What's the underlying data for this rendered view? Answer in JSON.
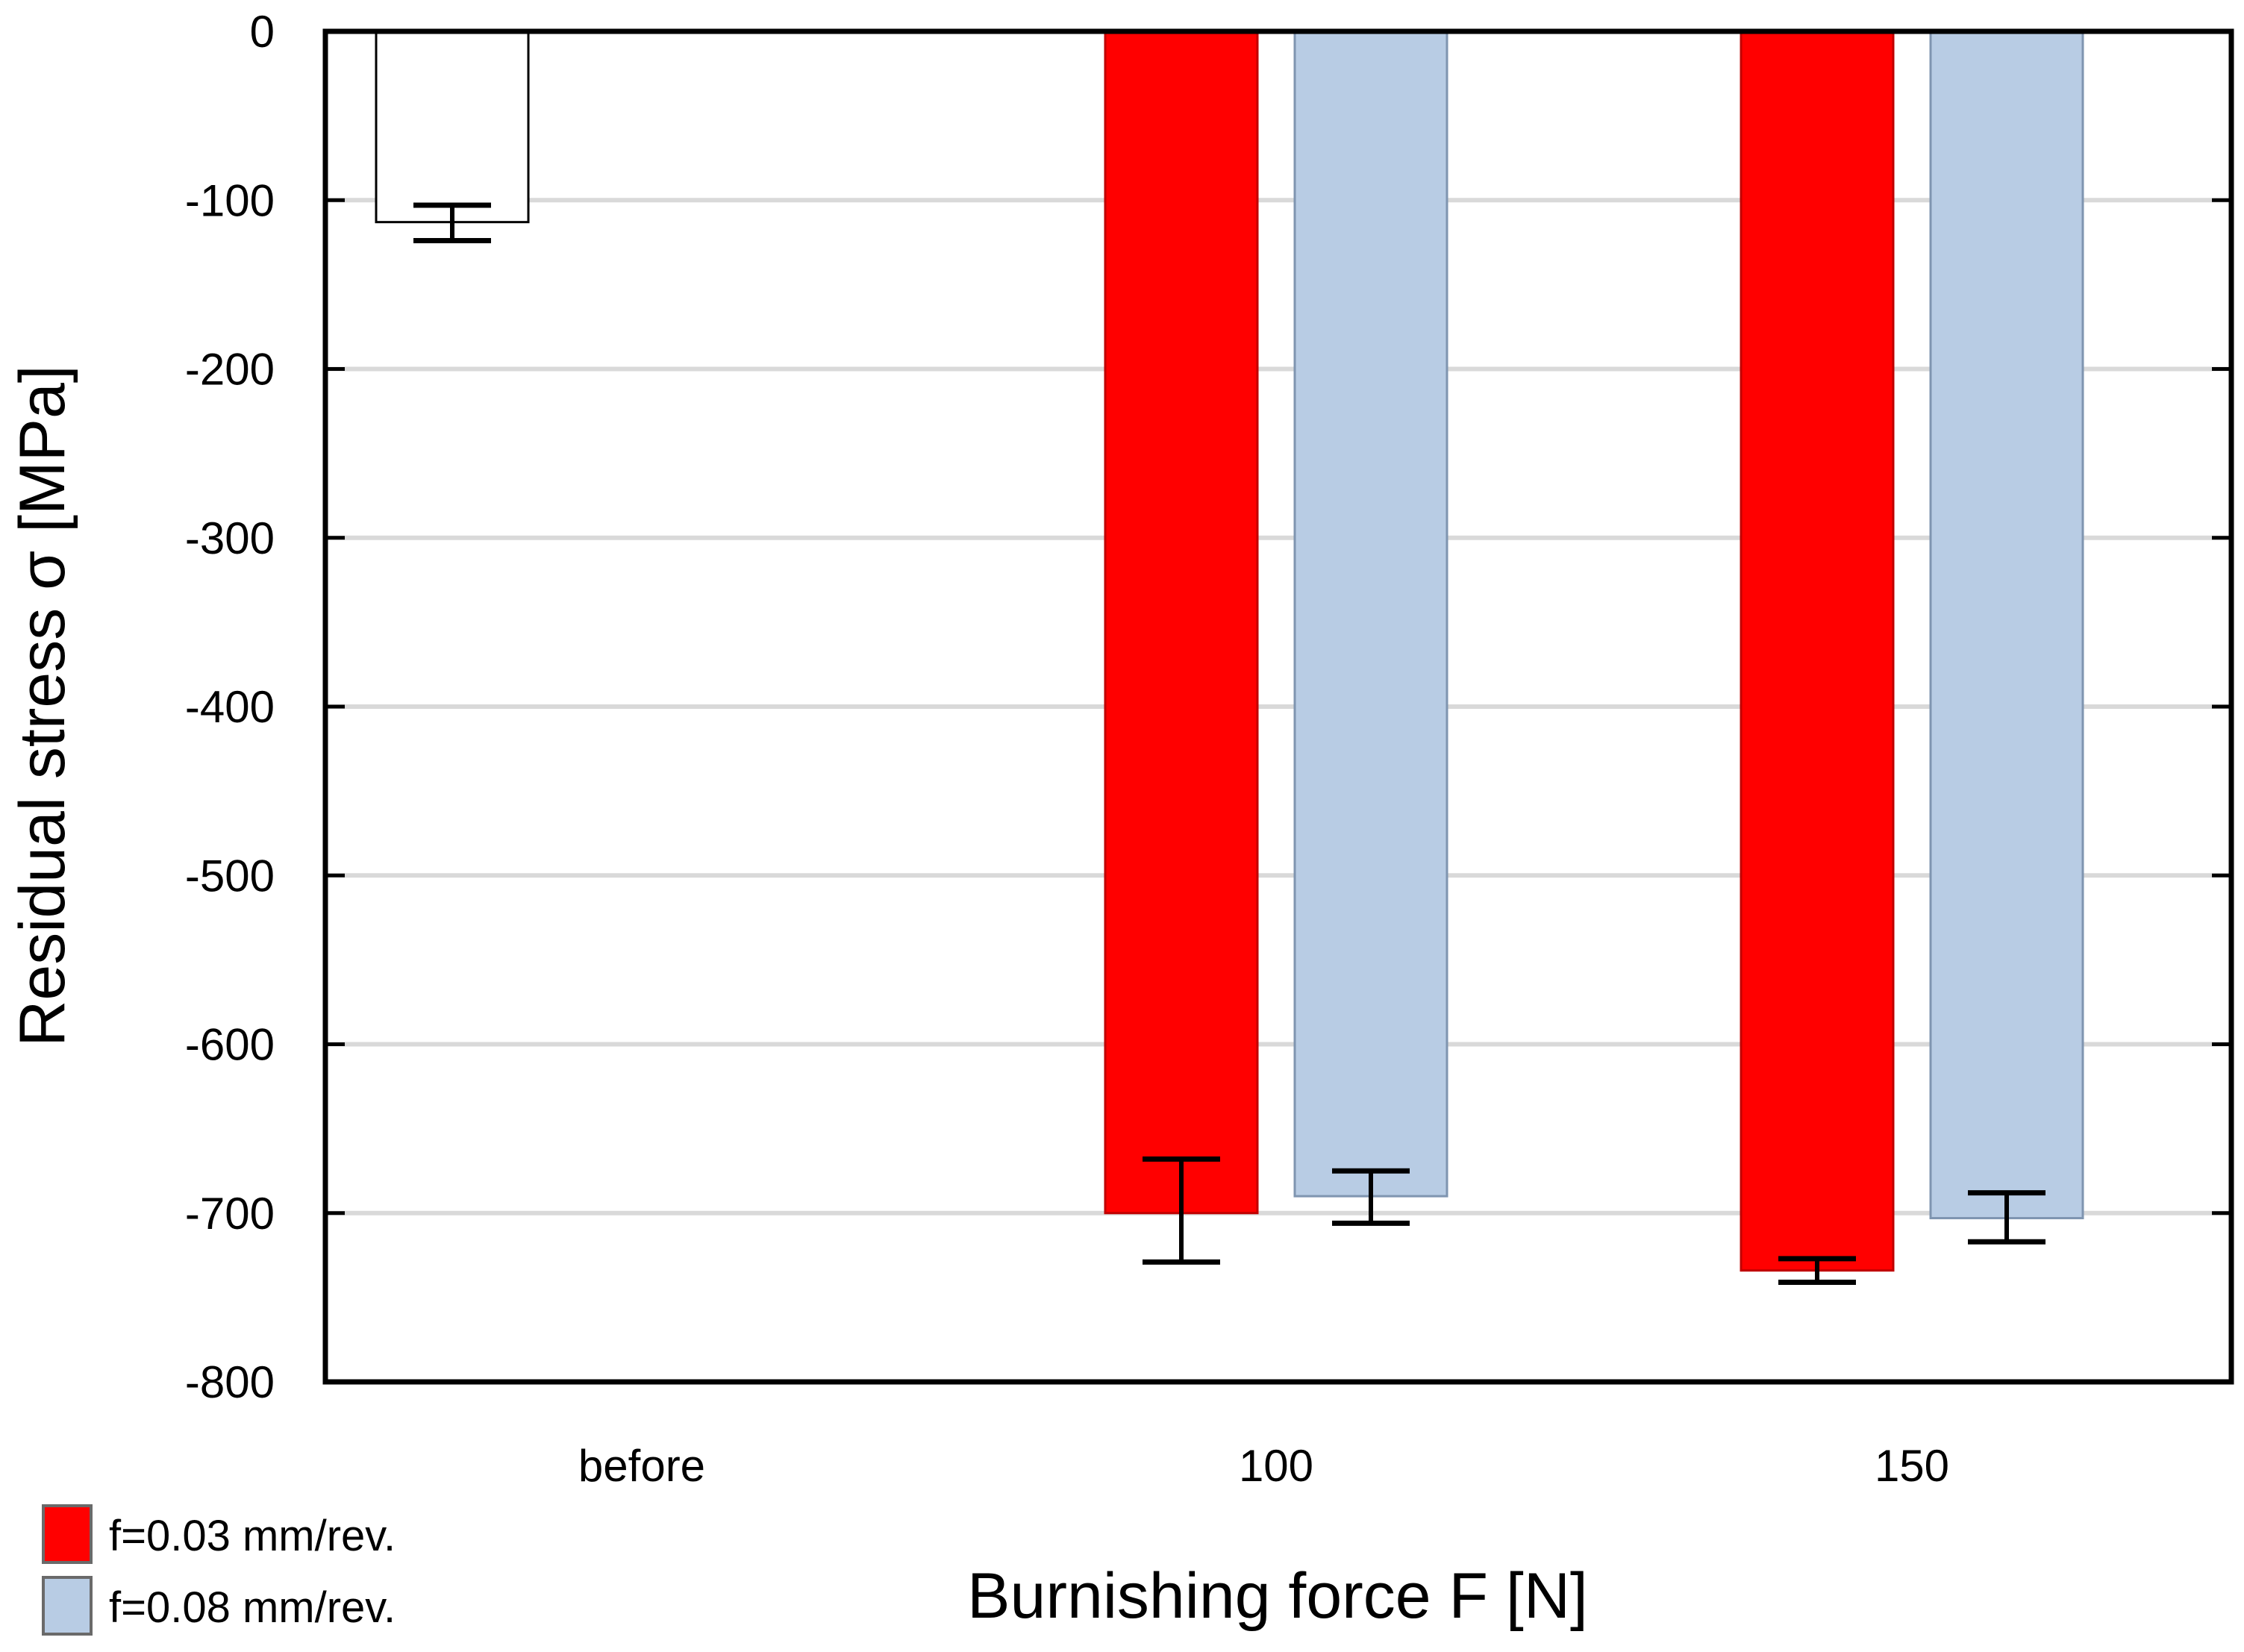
{
  "chart_data": {
    "type": "bar",
    "title": "",
    "xlabel": "Burnishing force F [N]",
    "ylabel": "Residual stress σ [MPa]",
    "ylim": [
      -800,
      0
    ],
    "yticks": [
      0,
      -100,
      -200,
      -300,
      -400,
      -500,
      -600,
      -700,
      -800
    ],
    "grid": "horizontal",
    "legend_placement": "bottom-left",
    "categories": [
      "before",
      "100",
      "150"
    ],
    "bars": [
      {
        "category": "before",
        "series": "",
        "value": -113,
        "err_low": -124,
        "err_high": -103,
        "color": "#ffffff",
        "stroke": "#000000"
      },
      {
        "category": "100",
        "series": "f=0.03 mm/rev.",
        "value": -700,
        "err_low": -729,
        "err_high": -668,
        "color": "#ff0000",
        "stroke": "#c00000"
      },
      {
        "category": "100",
        "series": "f=0.08 mm/rev.",
        "value": -690,
        "err_low": -706,
        "err_high": -675,
        "color": "#b8cce4",
        "stroke": "#7f95b0"
      },
      {
        "category": "150",
        "series": "f=0.03 mm/rev.",
        "value": -734,
        "err_low": -741,
        "err_high": -727,
        "color": "#ff0000",
        "stroke": "#c00000"
      },
      {
        "category": "150",
        "series": "f=0.08 mm/rev.",
        "value": -703,
        "err_low": -717,
        "err_high": -688,
        "color": "#b8cce4",
        "stroke": "#7f95b0"
      }
    ],
    "legend": [
      {
        "label": "f=0.03 mm/rev.",
        "color": "#ff0000"
      },
      {
        "label": "f=0.08 mm/rev.",
        "color": "#b8cce4"
      }
    ]
  }
}
